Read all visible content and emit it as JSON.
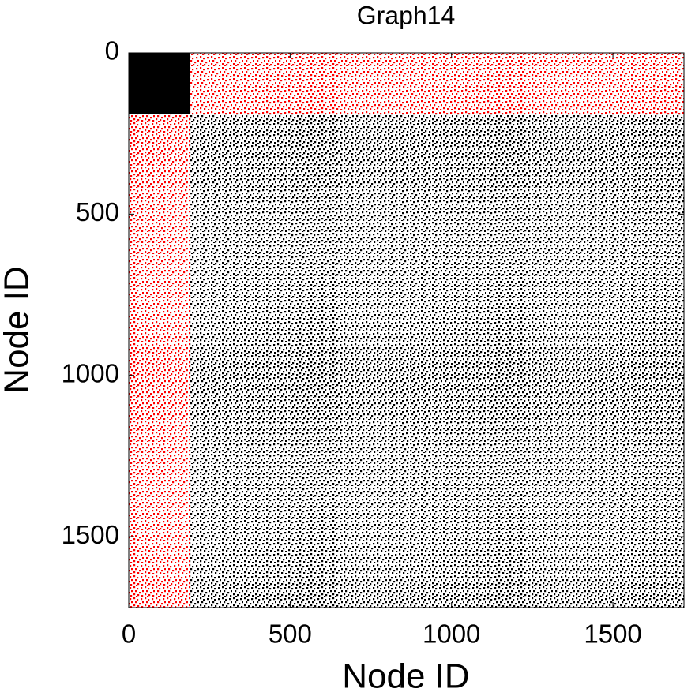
{
  "chart_data": {
    "type": "spy",
    "title": "Graph14",
    "x_label": "Node ID",
    "y_label": "Node ID",
    "xlim": [
      0,
      1720
    ],
    "ylim": [
      1720,
      0
    ],
    "xticks": [
      0,
      500,
      1000,
      1500
    ],
    "yticks": [
      0,
      500,
      1000,
      1500
    ],
    "blocks": [
      {
        "x": [
          0,
          190
        ],
        "y": [
          0,
          190
        ],
        "color": "#000000",
        "style": "solid"
      },
      {
        "x": [
          190,
          1720
        ],
        "y": [
          0,
          190
        ],
        "color": "#ff0000",
        "style": "dotted"
      },
      {
        "x": [
          0,
          190
        ],
        "y": [
          190,
          1720
        ],
        "color": "#ff0000",
        "style": "dotted"
      },
      {
        "x": [
          190,
          1720
        ],
        "y": [
          190,
          1720
        ],
        "color": "#000000",
        "style": "dotted"
      }
    ]
  }
}
